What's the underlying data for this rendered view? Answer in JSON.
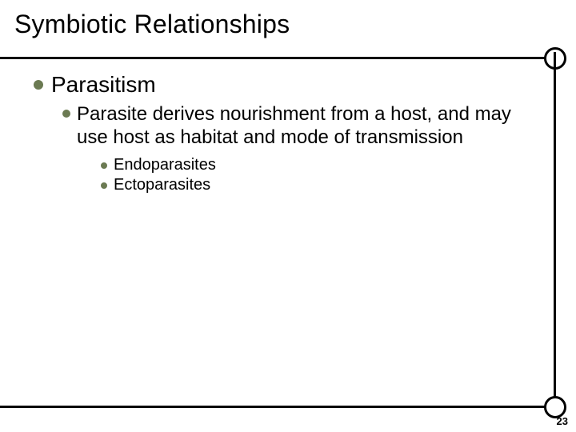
{
  "title": "Symbiotic Relationships",
  "bullets": {
    "lvl1": {
      "text": "Parasitism"
    },
    "lvl2": {
      "text": "Parasite derives nourishment from a host, and may use host as habitat and mode of transmission"
    },
    "lvl3a": {
      "text": "Endoparasites"
    },
    "lvl3b": {
      "text": "Ectoparasites"
    }
  },
  "page_number": "23",
  "colors": {
    "bullet": "#6b7a52",
    "rule": "#000000",
    "text": "#000000",
    "background": "#ffffff"
  },
  "fonts": {
    "title_size": 32,
    "lvl1_size": 28,
    "lvl2_size": 24,
    "lvl3_size": 20,
    "page_num_size": 13
  }
}
